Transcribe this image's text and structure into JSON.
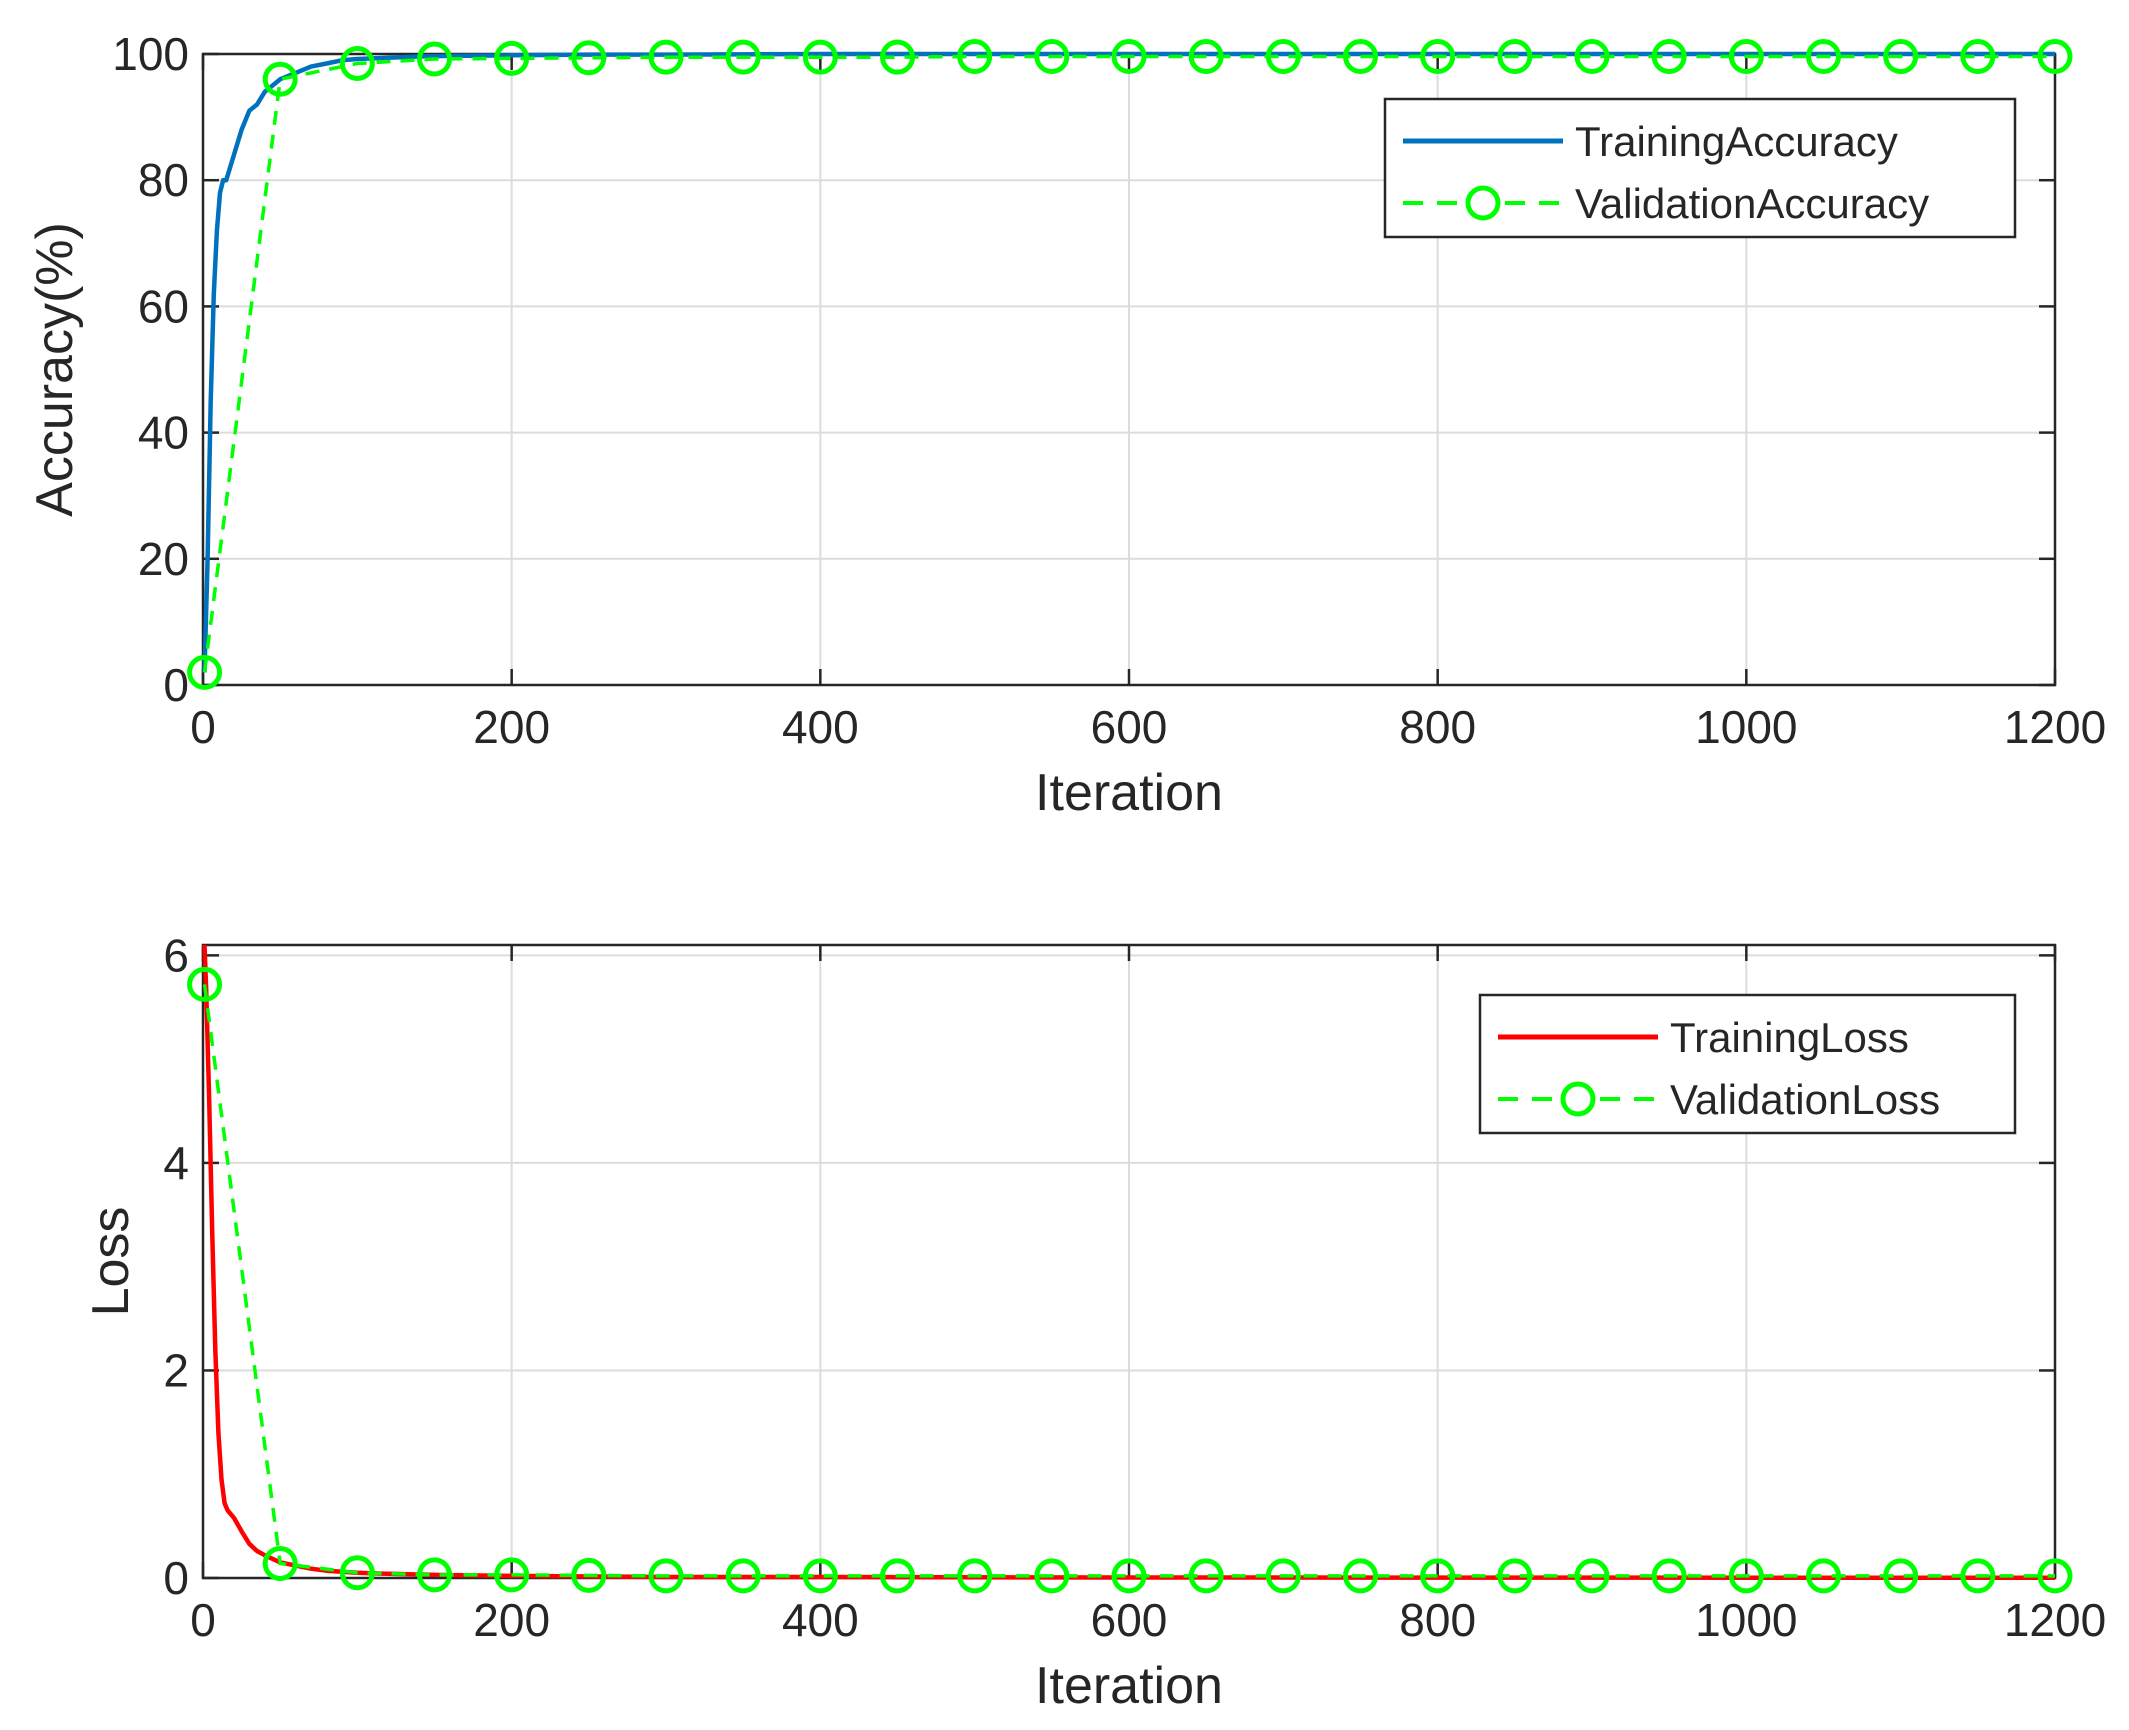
{
  "chart_data": [
    {
      "type": "line",
      "xlabel": "Iteration",
      "ylabel": "Accuracy(%)",
      "xlim": [
        0,
        1200
      ],
      "ylim": [
        0,
        100
      ],
      "xticks": [
        0,
        200,
        400,
        600,
        800,
        1000,
        1200
      ],
      "yticks": [
        0,
        20,
        40,
        60,
        80,
        100
      ],
      "grid": true,
      "legend_position": "top-right",
      "series": [
        {
          "name": "TrainingAccuracy",
          "color": "#0072BD",
          "style": "solid",
          "x": [
            1,
            3,
            5,
            7,
            9,
            11,
            13,
            15,
            20,
            25,
            30,
            35,
            40,
            45,
            50,
            60,
            70,
            80,
            90,
            100,
            120,
            140,
            160,
            200,
            250,
            300,
            400,
            500,
            600,
            700,
            800,
            900,
            1000,
            1100,
            1200
          ],
          "y": [
            2,
            20,
            45,
            62,
            72,
            78,
            80,
            80,
            84,
            88,
            91,
            92,
            94,
            95,
            96,
            97,
            98,
            98.5,
            99,
            99.2,
            99.4,
            99.6,
            99.7,
            99.8,
            99.9,
            99.9,
            100,
            100,
            100,
            100,
            100,
            100,
            100,
            100,
            100
          ]
        },
        {
          "name": "ValidationAccuracy",
          "color": "#00FF00",
          "style": "dashed-circle",
          "x": [
            1,
            50,
            100,
            150,
            200,
            250,
            300,
            350,
            400,
            450,
            500,
            550,
            600,
            650,
            700,
            750,
            800,
            850,
            900,
            950,
            1000,
            1050,
            1100,
            1150,
            1200
          ],
          "y": [
            2,
            96,
            98.5,
            99.2,
            99.3,
            99.4,
            99.5,
            99.5,
            99.5,
            99.5,
            99.6,
            99.6,
            99.6,
            99.6,
            99.6,
            99.6,
            99.6,
            99.6,
            99.6,
            99.6,
            99.6,
            99.6,
            99.6,
            99.6,
            99.6
          ]
        }
      ]
    },
    {
      "type": "line",
      "xlabel": "Iteration",
      "ylabel": "Loss",
      "xlim": [
        0,
        1200
      ],
      "ylim": [
        0,
        6.1
      ],
      "xticks": [
        0,
        200,
        400,
        600,
        800,
        1000,
        1200
      ],
      "yticks": [
        0,
        2,
        4,
        6
      ],
      "grid": true,
      "legend_position": "top-right",
      "series": [
        {
          "name": "TrainingLoss",
          "color": "#FF0000",
          "style": "solid",
          "x": [
            1,
            2,
            4,
            6,
            8,
            10,
            12,
            14,
            16,
            20,
            25,
            30,
            35,
            40,
            50,
            60,
            70,
            80,
            100,
            120,
            150,
            200,
            300,
            400,
            600,
            800,
            1000,
            1200
          ],
          "y": [
            6.1,
            5.7,
            4.6,
            3.3,
            2.2,
            1.4,
            0.95,
            0.72,
            0.65,
            0.58,
            0.45,
            0.33,
            0.26,
            0.22,
            0.15,
            0.12,
            0.09,
            0.07,
            0.05,
            0.04,
            0.03,
            0.02,
            0.01,
            0.01,
            0.005,
            0.004,
            0.003,
            0.003
          ]
        },
        {
          "name": "ValidationLoss",
          "color": "#00FF00",
          "style": "dashed-circle",
          "x": [
            1,
            50,
            100,
            150,
            200,
            250,
            300,
            350,
            400,
            450,
            500,
            550,
            600,
            650,
            700,
            750,
            800,
            850,
            900,
            950,
            1000,
            1050,
            1100,
            1150,
            1200
          ],
          "y": [
            5.72,
            0.14,
            0.05,
            0.03,
            0.03,
            0.025,
            0.02,
            0.02,
            0.02,
            0.02,
            0.02,
            0.02,
            0.02,
            0.02,
            0.02,
            0.02,
            0.02,
            0.02,
            0.02,
            0.02,
            0.02,
            0.02,
            0.02,
            0.02,
            0.02
          ]
        }
      ]
    }
  ]
}
